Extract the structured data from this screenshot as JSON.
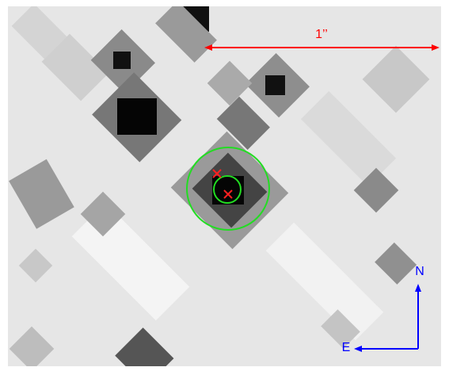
{
  "annotations": {
    "scale_label": "1’’",
    "north_label": "N",
    "east_label": "E"
  }
}
